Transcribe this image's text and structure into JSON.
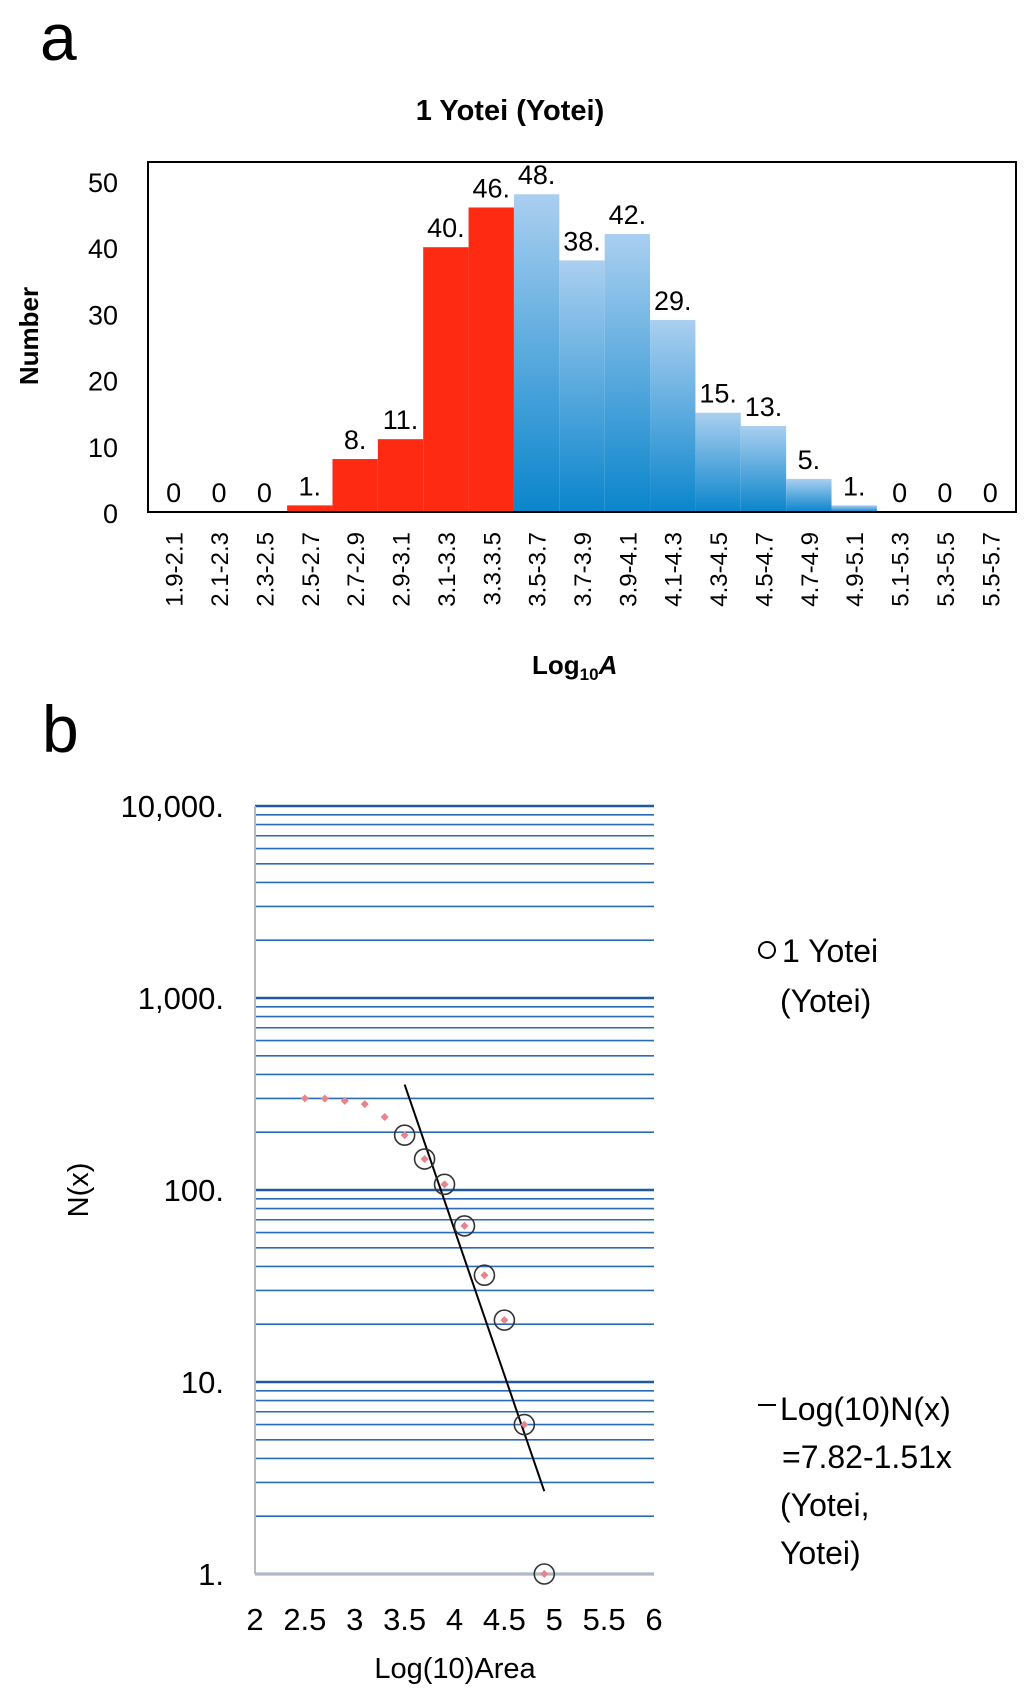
{
  "panels": {
    "a": {
      "letter": "a",
      "chart_data": {
        "type": "bar",
        "title": "1 Yotei (Yotei)",
        "ylabel": "Number",
        "xlabel_main": "Log",
        "xlabel_sub": "10",
        "xlabel_var": "A",
        "ylim": [
          0,
          50
        ],
        "yticks": [
          "0",
          "10",
          "20",
          "30",
          "40",
          "50"
        ],
        "categories": [
          "1.9-2.1",
          "2.1-2.3",
          "2.3-2.5",
          "2.5-2.7",
          "2.7-2.9",
          "2.9-3.1",
          "3.1-3.3",
          "3.3.3.5",
          "3.5-3.7",
          "3.7-3.9",
          "3.9-4.1",
          "4.1-4.3",
          "4.3-4.5",
          "4.5-4.7",
          "4.7-4.9",
          "4.9-5.1",
          "5.1-5.3",
          "5.3-5.5",
          "5.5-5.7"
        ],
        "values": [
          0,
          0,
          0,
          1,
          8,
          11,
          40,
          46,
          48,
          38,
          42,
          29,
          15,
          13,
          5,
          1,
          0,
          0,
          0
        ],
        "value_labels": [
          "0",
          "0",
          "0",
          "1.",
          "8.",
          "11.",
          "40.",
          "46.",
          "48.",
          "38.",
          "42.",
          "29.",
          "15.",
          "13.",
          "5.",
          "1.",
          "0",
          "0",
          "0"
        ],
        "colors": {
          "red": "#ff2a12",
          "blue_top": "#aacff0",
          "blue_bottom": "#0a85cc",
          "red_until_index": 7
        },
        "grid": false,
        "border": true
      }
    },
    "b": {
      "letter": "b",
      "chart_data": {
        "type": "scatter",
        "y_scale": "log",
        "xlabel": "Log(10)Area",
        "ylabel": "N(x)",
        "xlim": [
          2,
          6
        ],
        "ylim": [
          1,
          10000
        ],
        "xticks": [
          "2",
          "2.5",
          "3",
          "3.5",
          "4",
          "4.5",
          "5",
          "5.5",
          "6"
        ],
        "yticks": [
          "1.",
          "10.",
          "100.",
          "1,000.",
          "10,000."
        ],
        "grid": true,
        "grid_color": "#2a6bb8",
        "points": [
          {
            "x": 2.5,
            "y": 300
          },
          {
            "x": 2.7,
            "y": 299
          },
          {
            "x": 2.9,
            "y": 291
          },
          {
            "x": 3.1,
            "y": 280
          },
          {
            "x": 3.3,
            "y": 240
          },
          {
            "x": 3.5,
            "y": 193
          },
          {
            "x": 3.7,
            "y": 145
          },
          {
            "x": 3.9,
            "y": 107
          },
          {
            "x": 4.1,
            "y": 65
          },
          {
            "x": 4.3,
            "y": 36
          },
          {
            "x": 4.5,
            "y": 21
          },
          {
            "x": 4.7,
            "y": 6
          },
          {
            "x": 4.9,
            "y": 1
          }
        ],
        "circled_from_x": 3.5,
        "point_color": "#e8838c",
        "fit_line": {
          "x": [
            3.5,
            4.9
          ],
          "y": [
            354,
            2.7
          ],
          "color": "#000000"
        },
        "legend": {
          "circle_entry": [
            "1 Yotei",
            "(Yotei)"
          ],
          "line_entry": [
            "Log(10)N(x)",
            "=7.82-1.51x",
            "(Yotei,",
            "Yotei)"
          ],
          "placement": "right"
        }
      }
    }
  }
}
